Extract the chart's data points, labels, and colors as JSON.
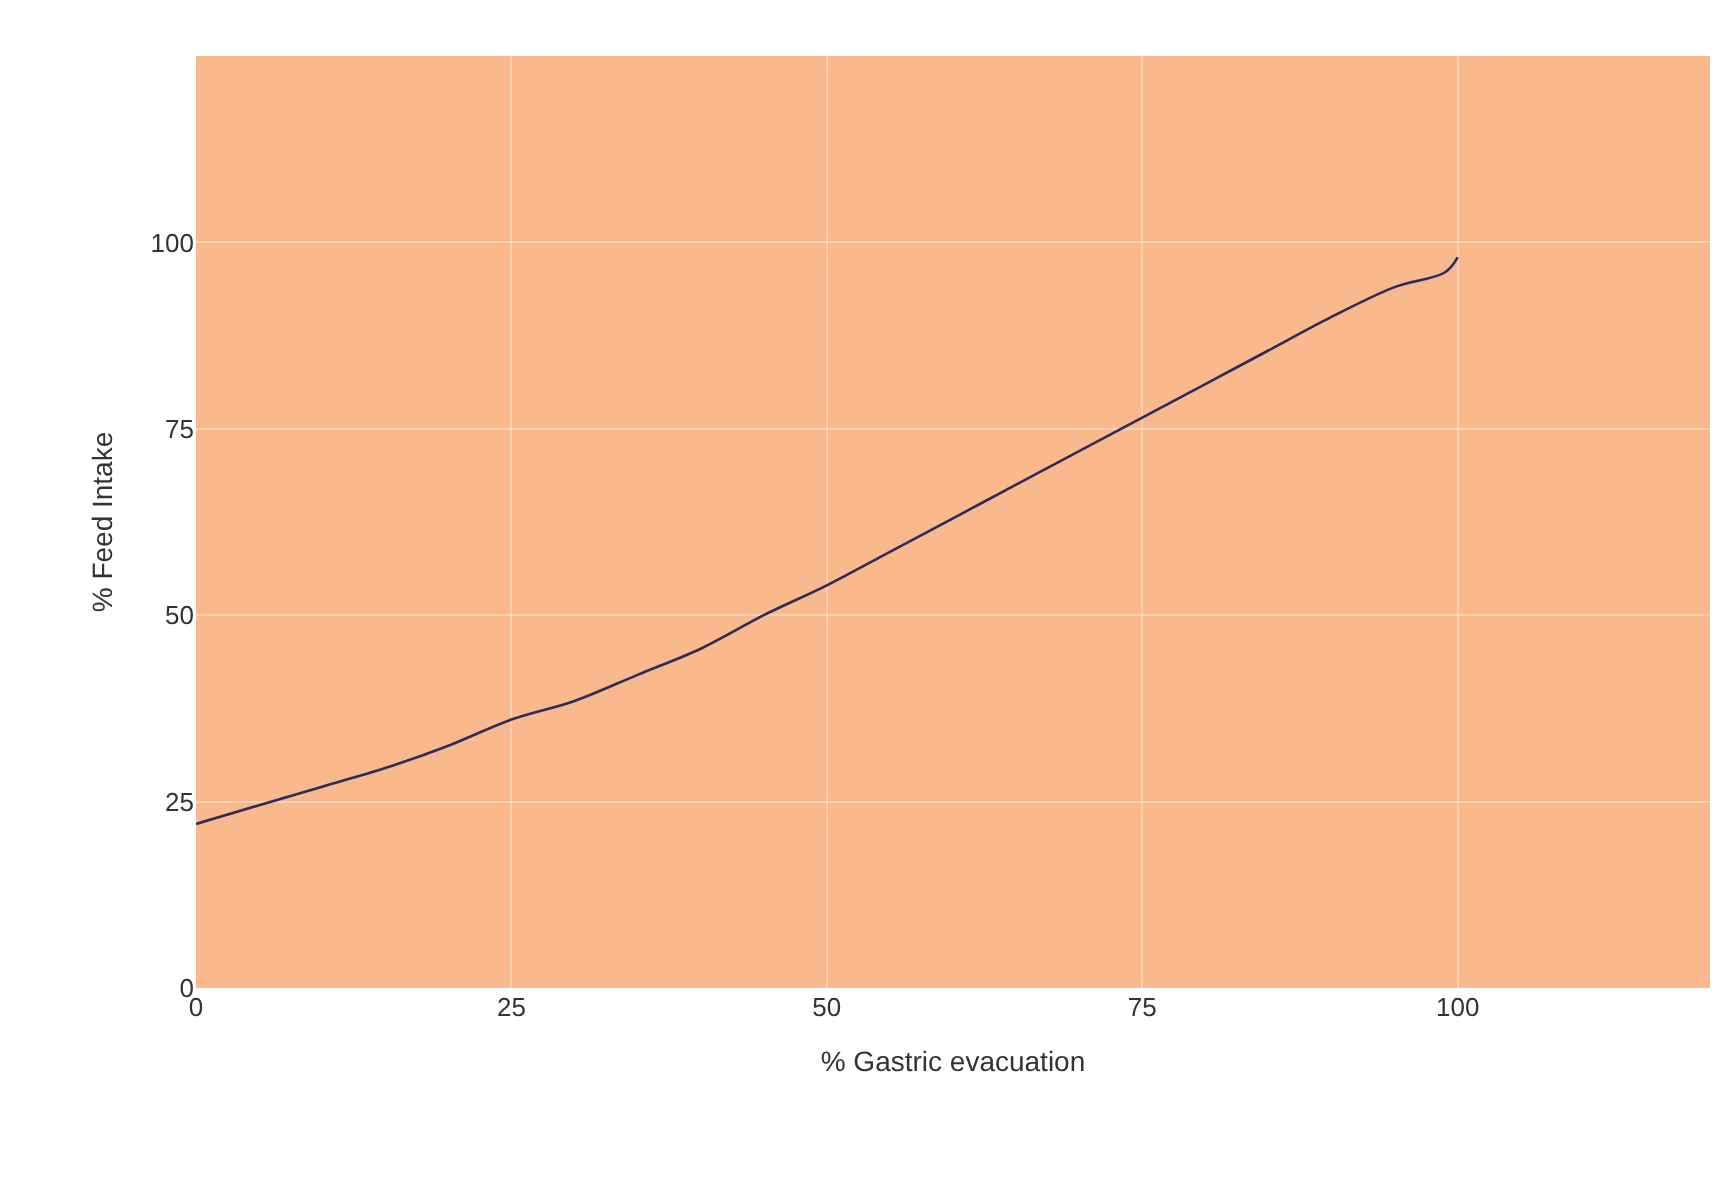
{
  "chart_data": {
    "type": "line",
    "xlabel": "% Gastric evacuation",
    "ylabel": "% Feed Intake",
    "x": [
      0,
      5,
      10,
      15,
      20,
      25,
      30,
      35,
      40,
      45,
      50,
      55,
      60,
      65,
      70,
      75,
      80,
      85,
      90,
      95,
      99,
      100
    ],
    "series": [
      {
        "color": "#2b2b5c",
        "values": [
          22,
          24.5,
          27,
          29.5,
          32.5,
          36,
          38.5,
          42,
          45.5,
          50,
          54,
          58.5,
          63,
          67.5,
          72,
          76.5,
          81,
          85.5,
          90,
          94,
          96,
          98
        ]
      }
    ],
    "xlim": [
      0,
      120
    ],
    "xticks": [
      0,
      25,
      50,
      75,
      100
    ],
    "ylim": [
      0,
      125
    ],
    "yticks": [
      0,
      25,
      50,
      75,
      100
    ],
    "grid": true,
    "marker": "none",
    "line_style": "solid"
  }
}
